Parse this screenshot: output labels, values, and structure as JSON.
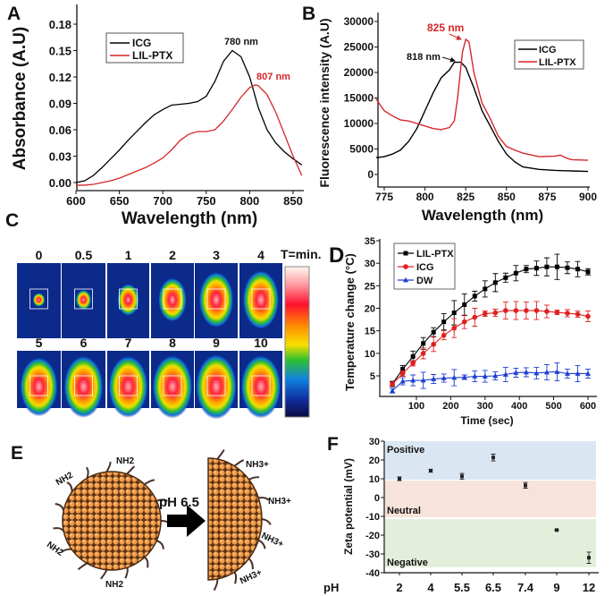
{
  "panel_letters": {
    "A": "A",
    "B": "B",
    "C": "C",
    "D": "D",
    "E": "E",
    "F": "F"
  },
  "chart_data": [
    {
      "id": "A",
      "type": "line",
      "xlabel": "Wavelength (nm)",
      "ylabel": "Absorbance (A.U)",
      "xlim": [
        600,
        860
      ],
      "ylim": [
        -0.009,
        0.2
      ],
      "xticks": [
        600,
        650,
        700,
        750,
        800,
        850
      ],
      "yticks": [
        "0.00",
        "0.03",
        "0.06",
        "0.09",
        "0.12",
        "0.15",
        "0.18"
      ],
      "legend": "top-left",
      "annotations": [
        {
          "text": "780 nm",
          "color": "#000000"
        },
        {
          "text": "807 nm",
          "color": "#d62728"
        }
      ],
      "series": [
        {
          "name": "ICG",
          "color": "#000000",
          "x": [
            600,
            610,
            620,
            630,
            640,
            650,
            660,
            670,
            680,
            690,
            700,
            710,
            720,
            730,
            740,
            750,
            760,
            770,
            780,
            790,
            800,
            810,
            820,
            830,
            840,
            850,
            860
          ],
          "y": [
            0.0,
            0.002,
            0.008,
            0.017,
            0.027,
            0.037,
            0.048,
            0.058,
            0.068,
            0.077,
            0.083,
            0.088,
            0.089,
            0.09,
            0.092,
            0.098,
            0.115,
            0.138,
            0.15,
            0.143,
            0.12,
            0.085,
            0.06,
            0.045,
            0.035,
            0.027,
            0.02
          ]
        },
        {
          "name": "LIL-PTX",
          "color": "#d62728",
          "x": [
            600,
            610,
            620,
            630,
            640,
            650,
            660,
            670,
            680,
            690,
            700,
            710,
            720,
            730,
            740,
            750,
            760,
            770,
            780,
            790,
            800,
            807,
            810,
            820,
            830,
            840,
            850,
            860
          ],
          "y": [
            -0.003,
            -0.003,
            -0.002,
            0.0,
            0.002,
            0.005,
            0.009,
            0.013,
            0.017,
            0.022,
            0.028,
            0.037,
            0.048,
            0.055,
            0.058,
            0.058,
            0.06,
            0.07,
            0.083,
            0.097,
            0.108,
            0.111,
            0.11,
            0.1,
            0.08,
            0.055,
            0.03,
            0.008
          ]
        }
      ]
    },
    {
      "id": "B",
      "type": "line",
      "xlabel": "Wavelength (nm)",
      "ylabel": "Fluorescence intensity (A.U)",
      "xlim": [
        770,
        900
      ],
      "ylim": [
        -2500,
        30500
      ],
      "xticks": [
        775,
        800,
        825,
        850,
        875,
        900
      ],
      "yticks": [
        0,
        5000,
        10000,
        15000,
        20000,
        25000,
        30000
      ],
      "legend": "top-right",
      "annotations": [
        {
          "text": "825 nm",
          "color": "#d62728"
        },
        {
          "text": "818 nm",
          "color": "#000000"
        }
      ],
      "series": [
        {
          "name": "ICG",
          "color": "#000000",
          "x": [
            770,
            775,
            780,
            785,
            790,
            795,
            800,
            805,
            810,
            815,
            818,
            822,
            825,
            830,
            835,
            840,
            845,
            850,
            855,
            860,
            870,
            880,
            890,
            900
          ],
          "y": [
            3300,
            3500,
            4000,
            4800,
            6500,
            9000,
            12500,
            16000,
            19000,
            20500,
            22000,
            22000,
            21000,
            17000,
            12500,
            9500,
            6500,
            4000,
            2500,
            1500,
            1000,
            800,
            700,
            600
          ]
        },
        {
          "name": "LIL-PTX",
          "color": "#d62728",
          "x": [
            770,
            775,
            780,
            785,
            790,
            795,
            800,
            805,
            810,
            815,
            818,
            820,
            823,
            825,
            827,
            830,
            835,
            840,
            845,
            850,
            855,
            860,
            870,
            880,
            883,
            887,
            890,
            900
          ],
          "y": [
            14800,
            12500,
            11500,
            10700,
            10500,
            10000,
            9500,
            9000,
            8800,
            9200,
            10500,
            15000,
            24000,
            26500,
            26000,
            20000,
            14000,
            11000,
            7500,
            5500,
            4800,
            4200,
            3500,
            3600,
            3800,
            3200,
            2900,
            2800
          ]
        }
      ]
    },
    {
      "id": "D",
      "type": "line",
      "xlabel": "Time (sec)",
      "ylabel": "Temperature change (°C)",
      "xlim": [
        0,
        630
      ],
      "ylim": [
        0,
        35
      ],
      "xticks": [
        100,
        200,
        300,
        400,
        500,
        600
      ],
      "yticks": [
        5,
        10,
        15,
        20,
        25,
        30,
        35
      ],
      "legend": "top-left",
      "x": [
        30,
        60,
        90,
        120,
        150,
        180,
        210,
        240,
        270,
        300,
        330,
        360,
        390,
        420,
        450,
        480,
        510,
        540,
        570,
        600
      ],
      "series": [
        {
          "name": "LIL-PTX",
          "color": "#000000",
          "marker": "square",
          "y": [
            3.2,
            6.5,
            9.3,
            12.2,
            14.7,
            17,
            19,
            20.8,
            22.7,
            24.3,
            25.7,
            26.8,
            27.8,
            28.7,
            28.9,
            29.2,
            29.2,
            29.0,
            28.7,
            28.1
          ],
          "err": [
            0.6,
            0.8,
            1.2,
            1.3,
            1,
            1.8,
            2.7,
            2.4,
            1.1,
            1.8,
            2,
            1,
            1.7,
            0.8,
            1.6,
            2,
            2.8,
            1.3,
            1.7,
            0.7
          ]
        },
        {
          "name": "ICG",
          "color": "#e02020",
          "marker": "circle",
          "y": [
            3.2,
            5.5,
            7.8,
            10,
            12,
            14,
            15.6,
            17,
            18,
            18.8,
            19,
            19.5,
            19.5,
            19.5,
            19.5,
            19.3,
            19.1,
            18.9,
            18.7,
            18.2
          ],
          "err": [
            0.4,
            0.6,
            0.6,
            1.2,
            1.6,
            1,
            2.1,
            1.5,
            2,
            0.6,
            0.8,
            1.9,
            2,
            1.9,
            2,
            1.4,
            0.5,
            0.8,
            0.7,
            1.2
          ]
        },
        {
          "name": "DW",
          "color": "#1f3fd0",
          "marker": "triangle",
          "y": [
            1.7,
            3.8,
            4,
            4,
            4.3,
            4.5,
            4.6,
            4.7,
            4.9,
            4.9,
            5,
            5.3,
            5.7,
            5.8,
            5.6,
            5.8,
            5.9,
            5.5,
            5.5,
            5.5
          ],
          "err": [
            0.5,
            0.8,
            1.2,
            1.8,
            1,
            0.9,
            1.8,
            0.5,
            1.2,
            1.3,
            0.9,
            1.6,
            1,
            1,
            1.3,
            1.7,
            2,
            1,
            1.8,
            1
          ]
        }
      ]
    },
    {
      "id": "F",
      "type": "scatter",
      "xlabel": "pH",
      "ylabel": "Zeta potential (mV)",
      "ylim": [
        -40,
        30
      ],
      "yticks": [
        30,
        20,
        10,
        0,
        -10,
        -20,
        -30,
        -40
      ],
      "categories": [
        "2",
        "4",
        "5.5",
        "6.5",
        "7.4",
        "9",
        "12"
      ],
      "values": [
        10,
        14.3,
        11.3,
        21.3,
        6.5,
        -17.3,
        -32
      ],
      "err": [
        1,
        0.8,
        1.5,
        1.8,
        1.5,
        0.3,
        3
      ],
      "bands": [
        {
          "label": "Positive",
          "from": 9.5,
          "to": 30,
          "color": "#dbe6f3"
        },
        {
          "label": "Neutral",
          "from": -10.5,
          "to": 9,
          "color": "#f7e3d9"
        },
        {
          "label": "Negative",
          "from": -37,
          "to": -11.5,
          "color": "#e3eedb"
        }
      ]
    }
  ],
  "panel_C": {
    "time_labels": [
      "0",
      "0.5",
      "1",
      "2",
      "3",
      "4",
      "5",
      "6",
      "7",
      "8",
      "9",
      "10"
    ],
    "unit_label": "T=min.",
    "heat_levels": [
      0.05,
      0.15,
      0.35,
      0.55,
      0.75,
      0.8,
      0.85,
      0.9,
      0.9,
      0.92,
      0.95,
      0.92
    ]
  },
  "panel_E": {
    "trigger_label": "pH 6.5",
    "left_labels": [
      "NH2",
      "NH2",
      "NH2",
      "NH2"
    ],
    "right_labels": [
      "NH3+",
      "NH3+",
      "NH3+",
      "NH3+"
    ],
    "particle_color": "#f29a45"
  }
}
